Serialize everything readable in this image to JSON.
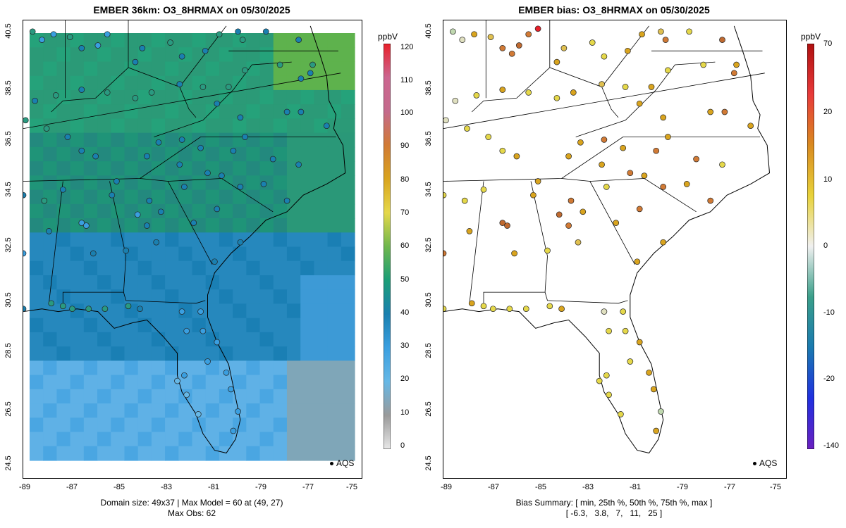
{
  "left_panel": {
    "title": "EMBER 36km: O3_8HRMAX on 05/30/2025",
    "footer_line1": "Domain size: 49x37 | Max Model = 60 at (49, 27)",
    "footer_line2": "Max Obs: 62",
    "legend_label": "AQS",
    "colorbar": {
      "unit": "ppbV",
      "labels": [
        "120",
        "110",
        "100",
        "90",
        "80",
        "70",
        "60",
        "50",
        "40",
        "30",
        "20",
        "10",
        "0"
      ],
      "colors": [
        "#e8202a",
        "#cc6690",
        "#c46a8c",
        "#d17a35",
        "#d9a41e",
        "#e5d84a",
        "#6fb74d",
        "#1b9e77",
        "#1a80b0",
        "#3a9fe0",
        "#66b8e6",
        "#9a9a9a",
        "#e8e8e8"
      ]
    }
  },
  "right_panel": {
    "title": "EMBER bias: O3_8HRMAX on 05/30/2025",
    "footer_line1": "Bias Summary: [ min, 25th %, 50th %, 75th %, max ]",
    "footer_line2": "[ -6.3,   3.8,   7,   11,   25 ]",
    "legend_label": "AQS",
    "colorbar": {
      "unit": "ppbV",
      "labels": [
        "70",
        "20",
        "10",
        "0",
        "-10",
        "-20",
        "-140"
      ],
      "colors": [
        "#b01010",
        "#e83a3a",
        "#d98a20",
        "#e8d23a",
        "#f0f0f0",
        "#3a9f8a",
        "#1a7ab0",
        "#2030e0",
        "#6a20c0"
      ]
    }
  },
  "axes": {
    "y_ticks": [
      "40.5",
      "38.5",
      "36.5",
      "34.5",
      "32.5",
      "30.5",
      "28.5",
      "26.5",
      "24.5"
    ],
    "x_ticks": [
      "-89",
      "-87",
      "-85",
      "-83",
      "-81",
      "-79",
      "-77",
      "-75"
    ]
  },
  "map_data": {
    "stations_left": [
      [
        -88.9,
        40.4,
        "#2a9a80"
      ],
      [
        -88.5,
        40.1,
        "#3a9fe0"
      ],
      [
        -88.0,
        40.3,
        "#3a9fe0"
      ],
      [
        -87.3,
        40.2,
        "#2a9a80"
      ],
      [
        -86.8,
        39.8,
        "#1a80b0"
      ],
      [
        -86.1,
        39.9,
        "#3a9fe0"
      ],
      [
        -85.7,
        40.3,
        "#3a9fe0"
      ],
      [
        -84.5,
        39.3,
        "#1a80b0"
      ],
      [
        -84.2,
        39.8,
        "#1a80b0"
      ],
      [
        -83.0,
        40.0,
        "#2a9a80"
      ],
      [
        -82.5,
        39.5,
        "#1a80b0"
      ],
      [
        -81.5,
        39.7,
        "#1a80b0"
      ],
      [
        -80.9,
        40.3,
        "#2a9a80"
      ],
      [
        -80.1,
        40.4,
        "#1a80b0"
      ],
      [
        -79.9,
        40.1,
        "#2a9a80"
      ],
      [
        -78.9,
        40.4,
        "#1a80b0"
      ],
      [
        -77.5,
        40.1,
        "#1a80b0"
      ],
      [
        -76.9,
        39.2,
        "#2a9a80"
      ],
      [
        -77.0,
        38.9,
        "#1a80b0"
      ],
      [
        -77.4,
        38.7,
        "#1a80b0"
      ],
      [
        -78.3,
        39.2,
        "#2a9a80"
      ],
      [
        -79.8,
        39.0,
        "#2a9a80"
      ],
      [
        -80.5,
        38.4,
        "#2a9a80"
      ],
      [
        -81.6,
        38.4,
        "#2a9a80"
      ],
      [
        -82.6,
        38.5,
        "#1a80b0"
      ],
      [
        -83.8,
        38.2,
        "#2a9a80"
      ],
      [
        -84.5,
        38.0,
        "#2a9a80"
      ],
      [
        -85.7,
        38.2,
        "#2a9a80"
      ],
      [
        -86.8,
        38.3,
        "#1a80b0"
      ],
      [
        -87.9,
        38.1,
        "#2a9a80"
      ],
      [
        -88.8,
        37.9,
        "#1a80b0"
      ],
      [
        -88.3,
        36.9,
        "#2a9a80"
      ],
      [
        -87.4,
        36.6,
        "#1a80b0"
      ],
      [
        -86.8,
        36.1,
        "#1a80b0"
      ],
      [
        -86.2,
        35.9,
        "#1a80b0"
      ],
      [
        -85.3,
        35.0,
        "#1a80b0"
      ],
      [
        -84.0,
        35.9,
        "#1a80b0"
      ],
      [
        -83.5,
        36.4,
        "#1a80b0"
      ],
      [
        -82.5,
        36.5,
        "#1a80b0"
      ],
      [
        -81.7,
        36.2,
        "#1a80b0"
      ],
      [
        -80.3,
        36.1,
        "#1a80b0"
      ],
      [
        -79.8,
        36.6,
        "#1a80b0"
      ],
      [
        -78.6,
        35.8,
        "#1a80b0"
      ],
      [
        -77.5,
        35.6,
        "#1a80b0"
      ],
      [
        -78.0,
        37.5,
        "#1a80b0"
      ],
      [
        -77.4,
        37.5,
        "#1a80b0"
      ],
      [
        -76.3,
        37.0,
        "#1a80b0"
      ],
      [
        -80.0,
        37.3,
        "#1a80b0"
      ],
      [
        -81.0,
        37.8,
        "#1a80b0"
      ],
      [
        -82.6,
        35.6,
        "#1a80b0"
      ],
      [
        -81.4,
        35.3,
        "#1a80b0"
      ],
      [
        -80.8,
        35.2,
        "#1a80b0"
      ],
      [
        -80.0,
        34.8,
        "#1a80b0"
      ],
      [
        -79.0,
        34.9,
        "#1a80b0"
      ],
      [
        -78.0,
        34.3,
        "#1a80b0"
      ],
      [
        -81.0,
        34.0,
        "#1a80b0"
      ],
      [
        -82.4,
        34.8,
        "#1a80b0"
      ],
      [
        -83.9,
        34.3,
        "#1a80b0"
      ],
      [
        -84.4,
        33.8,
        "#3a9fe0"
      ],
      [
        -84.0,
        33.4,
        "#1a80b0"
      ],
      [
        -83.4,
        33.9,
        "#1a80b0"
      ],
      [
        -85.5,
        34.5,
        "#1a80b0"
      ],
      [
        -86.8,
        33.5,
        "#3a9fe0"
      ],
      [
        -86.6,
        33.4,
        "#3a9fe0"
      ],
      [
        -87.6,
        34.7,
        "#1a80b0"
      ],
      [
        -88.4,
        34.3,
        "#2a9a80"
      ],
      [
        -88.2,
        33.2,
        "#1a80b0"
      ],
      [
        -86.3,
        32.4,
        "#1a80b0"
      ],
      [
        -84.9,
        32.5,
        "#1a80b0"
      ],
      [
        -83.6,
        32.8,
        "#1a80b0"
      ],
      [
        -82.0,
        33.5,
        "#1a80b0"
      ],
      [
        -81.1,
        32.1,
        "#1a80b0"
      ],
      [
        -80.0,
        32.8,
        "#1a80b0"
      ],
      [
        -88.1,
        30.6,
        "#2a9a80"
      ],
      [
        -87.6,
        30.5,
        "#2a9a80"
      ],
      [
        -87.2,
        30.4,
        "#2a9a80"
      ],
      [
        -86.5,
        30.4,
        "#2a9a80"
      ],
      [
        -85.8,
        30.4,
        "#2a9a80"
      ],
      [
        -84.8,
        30.5,
        "#2a9a80"
      ],
      [
        -84.3,
        30.4,
        "#1a80b0"
      ],
      [
        -82.5,
        30.3,
        "#3a9fe0"
      ],
      [
        -81.7,
        30.3,
        "#3a9fe0"
      ],
      [
        -81.6,
        29.6,
        "#3a9fe0"
      ],
      [
        -82.3,
        29.6,
        "#3a9fe0"
      ],
      [
        -81.0,
        29.2,
        "#3a9fe0"
      ],
      [
        -81.4,
        28.5,
        "#3a9fe0"
      ],
      [
        -80.6,
        28.1,
        "#3a9fe0"
      ],
      [
        -82.4,
        28.0,
        "#3a9fe0"
      ],
      [
        -82.7,
        27.8,
        "#66b8e6"
      ],
      [
        -82.3,
        27.3,
        "#66b8e6"
      ],
      [
        -81.8,
        26.6,
        "#66b8e6"
      ],
      [
        -80.1,
        26.7,
        "#3a9fe0"
      ],
      [
        -80.3,
        26.0,
        "#3a9fe0"
      ],
      [
        -80.4,
        27.5,
        "#3a9fe0"
      ],
      [
        -89.3,
        30.4,
        "#1a80b0"
      ],
      [
        -89.3,
        32.4,
        "#3a9fe0"
      ],
      [
        -89.3,
        34.5,
        "#1a80b0"
      ],
      [
        -89.2,
        37.2,
        "#2a9a80"
      ]
    ],
    "stations_right": [
      [
        -88.9,
        40.4,
        "#c0d8b0"
      ],
      [
        -88.5,
        40.1,
        "#e0e0c0"
      ],
      [
        -88.0,
        40.3,
        "#d9a41e"
      ],
      [
        -87.3,
        40.2,
        "#e0c050"
      ],
      [
        -86.8,
        39.8,
        "#d17a35"
      ],
      [
        -86.4,
        39.6,
        "#d17a35"
      ],
      [
        -86.1,
        39.9,
        "#c06a30"
      ],
      [
        -85.7,
        40.3,
        "#d17a35"
      ],
      [
        -85.3,
        40.5,
        "#e8202a"
      ],
      [
        -84.5,
        39.3,
        "#d9a41e"
      ],
      [
        -84.2,
        39.8,
        "#e0c050"
      ],
      [
        -83.0,
        40.0,
        "#e5d84a"
      ],
      [
        -82.5,
        39.5,
        "#e5d84a"
      ],
      [
        -81.5,
        39.7,
        "#d9a41e"
      ],
      [
        -80.9,
        40.3,
        "#d9a41e"
      ],
      [
        -80.1,
        40.4,
        "#e0c050"
      ],
      [
        -79.9,
        40.1,
        "#d17a35"
      ],
      [
        -78.9,
        40.4,
        "#e5d84a"
      ],
      [
        -77.5,
        40.1,
        "#c06a30"
      ],
      [
        -76.9,
        39.2,
        "#d9a41e"
      ],
      [
        -77.0,
        38.9,
        "#d17a35"
      ],
      [
        -78.3,
        39.2,
        "#e5d84a"
      ],
      [
        -79.8,
        39.0,
        "#e5d84a"
      ],
      [
        -80.5,
        38.4,
        "#d9a41e"
      ],
      [
        -81.6,
        38.4,
        "#e5d84a"
      ],
      [
        -82.6,
        38.5,
        "#e0c050"
      ],
      [
        -83.8,
        38.2,
        "#d9a41e"
      ],
      [
        -84.5,
        38.0,
        "#e5d84a"
      ],
      [
        -85.7,
        38.2,
        "#e5d84a"
      ],
      [
        -86.8,
        38.3,
        "#d9a41e"
      ],
      [
        -87.9,
        38.1,
        "#e5d84a"
      ],
      [
        -88.8,
        37.9,
        "#e0e0c0"
      ],
      [
        -88.3,
        36.9,
        "#e5d84a"
      ],
      [
        -87.4,
        36.6,
        "#e5d84a"
      ],
      [
        -86.8,
        36.1,
        "#e5d84a"
      ],
      [
        -86.2,
        35.9,
        "#d9a41e"
      ],
      [
        -85.3,
        35.0,
        "#d9a41e"
      ],
      [
        -84.0,
        35.9,
        "#d9a41e"
      ],
      [
        -83.5,
        36.4,
        "#d9a41e"
      ],
      [
        -82.5,
        36.5,
        "#d17a35"
      ],
      [
        -81.7,
        36.2,
        "#d9a41e"
      ],
      [
        -80.3,
        36.1,
        "#d17a35"
      ],
      [
        -79.8,
        36.6,
        "#d9a41e"
      ],
      [
        -78.6,
        35.8,
        "#d17a35"
      ],
      [
        -77.5,
        35.6,
        "#e5d84a"
      ],
      [
        -78.0,
        37.5,
        "#d9a41e"
      ],
      [
        -77.4,
        37.5,
        "#d17a35"
      ],
      [
        -76.3,
        37.0,
        "#d9a41e"
      ],
      [
        -80.0,
        37.3,
        "#d9a41e"
      ],
      [
        -81.0,
        37.8,
        "#d9a41e"
      ],
      [
        -82.6,
        35.6,
        "#d9a41e"
      ],
      [
        -81.4,
        35.3,
        "#d17a35"
      ],
      [
        -80.8,
        35.2,
        "#d9a41e"
      ],
      [
        -80.0,
        34.8,
        "#d17a35"
      ],
      [
        -79.0,
        34.9,
        "#d9a41e"
      ],
      [
        -78.0,
        34.3,
        "#d17a35"
      ],
      [
        -81.0,
        34.0,
        "#d17a35"
      ],
      [
        -82.4,
        34.8,
        "#e5d84a"
      ],
      [
        -83.9,
        34.3,
        "#d17a35"
      ],
      [
        -84.4,
        33.8,
        "#c06a30"
      ],
      [
        -84.0,
        33.4,
        "#d17a35"
      ],
      [
        -83.4,
        33.9,
        "#d9a41e"
      ],
      [
        -85.5,
        34.5,
        "#d9a41e"
      ],
      [
        -86.8,
        33.5,
        "#c06a30"
      ],
      [
        -86.6,
        33.4,
        "#c06a30"
      ],
      [
        -87.6,
        34.7,
        "#e5d84a"
      ],
      [
        -88.4,
        34.3,
        "#e5d84a"
      ],
      [
        -88.2,
        33.2,
        "#d9a41e"
      ],
      [
        -86.3,
        32.4,
        "#d9a41e"
      ],
      [
        -84.9,
        32.5,
        "#e5d84a"
      ],
      [
        -83.6,
        32.8,
        "#e0c050"
      ],
      [
        -82.0,
        33.5,
        "#d9a41e"
      ],
      [
        -81.1,
        32.1,
        "#d9a41e"
      ],
      [
        -80.0,
        32.8,
        "#d9a41e"
      ],
      [
        -88.1,
        30.6,
        "#d9a41e"
      ],
      [
        -87.6,
        30.5,
        "#e5d84a"
      ],
      [
        -87.2,
        30.4,
        "#e5d84a"
      ],
      [
        -86.5,
        30.4,
        "#e5d84a"
      ],
      [
        -85.8,
        30.4,
        "#e5d84a"
      ],
      [
        -84.8,
        30.5,
        "#e5d84a"
      ],
      [
        -84.3,
        30.4,
        "#d9a41e"
      ],
      [
        -82.5,
        30.3,
        "#e0e0c0"
      ],
      [
        -81.7,
        30.3,
        "#e5d84a"
      ],
      [
        -81.6,
        29.6,
        "#e5d84a"
      ],
      [
        -82.3,
        29.6,
        "#e5d84a"
      ],
      [
        -81.0,
        29.2,
        "#d9a41e"
      ],
      [
        -81.4,
        28.5,
        "#e5d84a"
      ],
      [
        -80.6,
        28.1,
        "#d9a41e"
      ],
      [
        -82.4,
        28.0,
        "#e5d84a"
      ],
      [
        -82.7,
        27.8,
        "#e5d84a"
      ],
      [
        -82.3,
        27.3,
        "#e5d84a"
      ],
      [
        -81.8,
        26.6,
        "#e5d84a"
      ],
      [
        -80.1,
        26.7,
        "#c0d8b0"
      ],
      [
        -80.3,
        26.0,
        "#d9a41e"
      ],
      [
        -80.4,
        27.5,
        "#d9a41e"
      ],
      [
        -89.3,
        30.4,
        "#e5d84a"
      ],
      [
        -89.3,
        32.4,
        "#d17a35"
      ],
      [
        -89.3,
        34.5,
        "#e5d84a"
      ],
      [
        -89.2,
        37.2,
        "#e0e0c0"
      ]
    ]
  }
}
